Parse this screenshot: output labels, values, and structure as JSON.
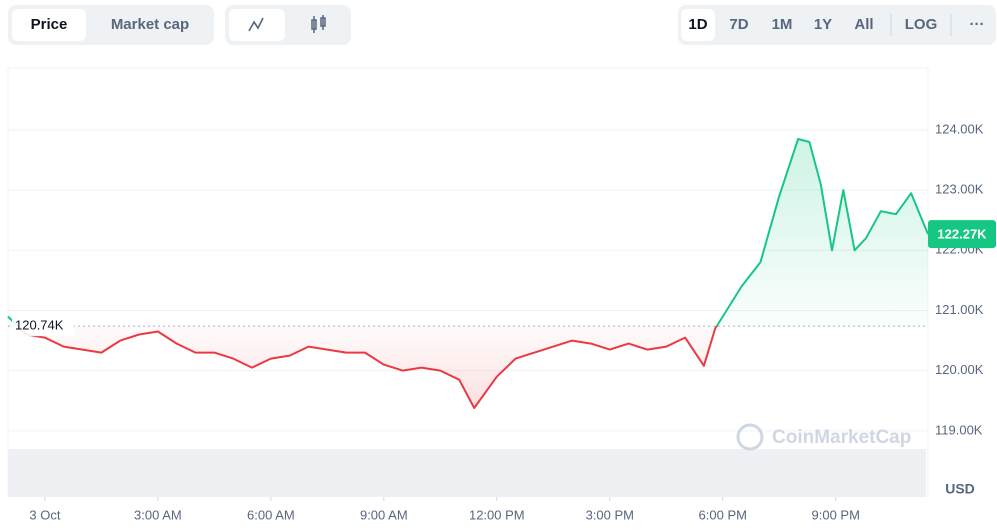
{
  "controls": {
    "tabs": [
      "Price",
      "Market cap"
    ],
    "ranges": [
      "1D",
      "7D",
      "1M",
      "1Y",
      "All",
      "LOG"
    ],
    "more": "···"
  },
  "chart_data": {
    "type": "line",
    "currency": "USD",
    "watermark": "CoinMarketCap",
    "x": [
      -0.98,
      -0.5,
      0,
      0.5,
      1,
      1.5,
      2,
      2.5,
      3,
      3.5,
      4,
      4.5,
      5,
      5.5,
      6,
      6.5,
      7,
      7.5,
      8,
      8.5,
      9,
      9.5,
      10,
      10.5,
      11,
      11.4,
      12,
      12.5,
      13,
      13.5,
      14,
      14.5,
      15,
      15.5,
      16,
      16.5,
      17,
      17.5,
      17.8,
      18,
      18.5,
      19,
      19.5,
      20,
      20.3,
      20.6,
      20.9,
      21.2,
      21.5,
      21.8,
      22.2,
      22.6,
      23,
      23.45
    ],
    "values": [
      120.9,
      120.6,
      120.55,
      120.4,
      120.35,
      120.3,
      120.5,
      120.6,
      120.65,
      120.45,
      120.3,
      120.3,
      120.2,
      120.05,
      120.2,
      120.25,
      120.4,
      120.35,
      120.3,
      120.3,
      120.1,
      120.0,
      120.05,
      120.0,
      119.85,
      119.38,
      119.9,
      120.2,
      120.3,
      120.4,
      120.5,
      120.45,
      120.35,
      120.45,
      120.35,
      120.4,
      120.55,
      120.08,
      120.7,
      120.9,
      121.4,
      121.8,
      122.9,
      123.85,
      123.8,
      123.1,
      122.0,
      123.0,
      122.0,
      122.2,
      122.65,
      122.6,
      122.95,
      122.27
    ],
    "up_color": "#16c784",
    "down_color": "#ea3943",
    "baseline": {
      "value": 120.74,
      "label": "120.74K"
    },
    "last": {
      "value": 122.27,
      "label": "122.27K"
    },
    "xlim": [
      -0.98,
      23.45
    ],
    "ylim": [
      117.9,
      125.03
    ],
    "xticks": [
      {
        "value": 0,
        "label": "3 Oct"
      },
      {
        "value": 3,
        "label": "3:00 AM"
      },
      {
        "value": 6,
        "label": "6:00 AM"
      },
      {
        "value": 9,
        "label": "9:00 AM"
      },
      {
        "value": 12,
        "label": "12:00 PM"
      },
      {
        "value": 15,
        "label": "3:00 PM"
      },
      {
        "value": 18,
        "label": "6:00 PM"
      },
      {
        "value": 21,
        "label": "9:00 PM"
      }
    ],
    "yticks": [
      {
        "value": 119,
        "label": "119.00K"
      },
      {
        "value": 120,
        "label": "120.00K"
      },
      {
        "value": 121,
        "label": "121.00K"
      },
      {
        "value": 122,
        "label": "122.00K"
      },
      {
        "value": 123,
        "label": "123.00K"
      },
      {
        "value": 124,
        "label": "124.00K"
      }
    ],
    "grid": true
  }
}
